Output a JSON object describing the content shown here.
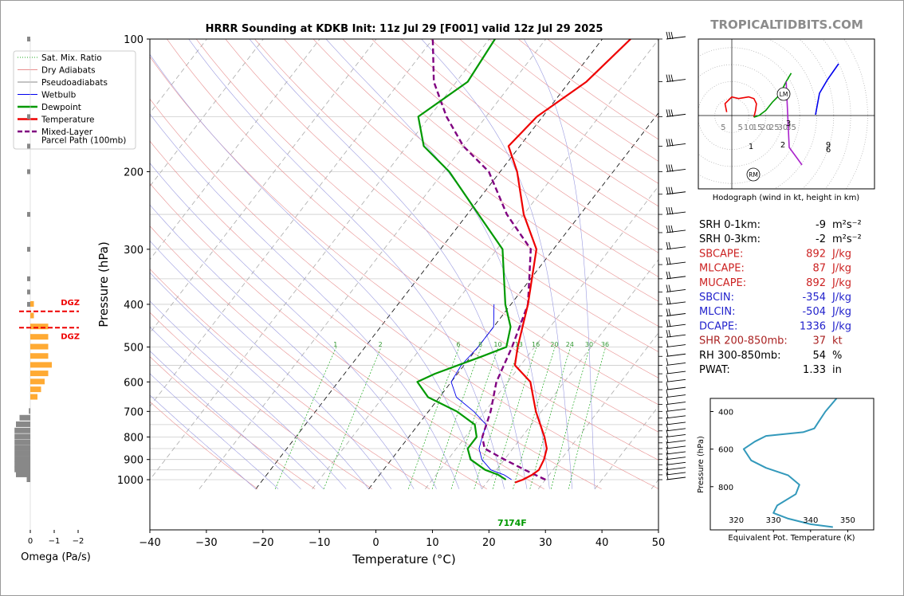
{
  "title": "HRRR Sounding at KDKB Init: 11z Jul 29 [F001] valid 12z Jul 29 2025",
  "watermark": "TROPICALTIDBITS.COM",
  "colors": {
    "temperature": "#ee0000",
    "dewpoint": "#009900",
    "wetbulb": "#0000ee",
    "parcel": "#800080",
    "dry_adiabat": "#e89090",
    "pseudoadiabat": "#9a9ae0",
    "mixing_ratio": "#22aa22",
    "isotherm": "#333333",
    "theta_e": "#3399bb",
    "cape_red": "#cc2222",
    "cin_blue": "#2222cc",
    "shear_red": "#aa2222",
    "omega_up": "#ffaa33",
    "omega_down": "#888888"
  },
  "skewt": {
    "xlabel": "Temperature (°C)",
    "ylabel": "Pressure (hPa)",
    "xlim": [
      -40,
      50
    ],
    "xticks": [
      "−40",
      "−30",
      "−20",
      "−10",
      "0",
      "10",
      "20",
      "30",
      "40",
      "50"
    ],
    "yticks": [
      "100",
      "200",
      "300",
      "400",
      "500",
      "600",
      "700",
      "800",
      "900",
      "1000"
    ],
    "surface_label": "71",
    "surface_label_dew": "74F",
    "mixing_ratio_labels": [
      "1",
      "2",
      "6",
      "8",
      "10",
      "13",
      "16",
      "20",
      "24",
      "30",
      "36"
    ],
    "legend": [
      {
        "key": "mix",
        "label": "Sat. Mix. Ratio"
      },
      {
        "key": "dry",
        "label": "Dry Adiabats"
      },
      {
        "key": "pseudo",
        "label": "Pseudoadiabats"
      },
      {
        "key": "wb",
        "label": "Wetbulb"
      },
      {
        "key": "dew",
        "label": "Dewpoint"
      },
      {
        "key": "temp",
        "label": "Temperature"
      },
      {
        "key": "parcel",
        "label": "Mixed-Layer"
      },
      {
        "key": "parcel2",
        "label": "Parcel Path (100mb)"
      }
    ]
  },
  "chart_data": [
    {
      "type": "line",
      "name": "skew-t",
      "xlabel": "Temperature (°C)",
      "ylabel": "Pressure (hPa)",
      "xlim": [
        -40,
        50
      ],
      "ylim": [
        1050,
        100
      ],
      "y_scale": "log",
      "series": [
        {
          "name": "Temperature",
          "points": [
            [
              25,
              1015
            ],
            [
              26,
              1000
            ],
            [
              27,
              975
            ],
            [
              27.5,
              950
            ],
            [
              27,
              900
            ],
            [
              26,
              850
            ],
            [
              24,
              800
            ],
            [
              19,
              700
            ],
            [
              14,
              600
            ],
            [
              9,
              550
            ],
            [
              7,
              500
            ],
            [
              3,
              400
            ],
            [
              -3,
              300
            ],
            [
              -10,
              250
            ],
            [
              -17,
              200
            ],
            [
              -22,
              175
            ],
            [
              -21,
              150
            ],
            [
              -17,
              125
            ],
            [
              -15,
              100
            ]
          ]
        },
        {
          "name": "Dewpoint",
          "points": [
            [
              23,
              1000
            ],
            [
              21,
              975
            ],
            [
              18,
              950
            ],
            [
              14,
              900
            ],
            [
              12,
              850
            ],
            [
              12,
              800
            ],
            [
              10,
              750
            ],
            [
              5,
              700
            ],
            [
              -2,
              650
            ],
            [
              -6,
              600
            ],
            [
              -4,
              575
            ],
            [
              2,
              525
            ],
            [
              5,
              500
            ],
            [
              3,
              450
            ],
            [
              -1,
              400
            ],
            [
              -9,
              300
            ],
            [
              -18,
              250
            ],
            [
              -29,
              200
            ],
            [
              -37,
              175
            ],
            [
              -42,
              150
            ],
            [
              -38,
              125
            ],
            [
              -39,
              100
            ]
          ]
        },
        {
          "name": "Wetbulb",
          "points": [
            [
              24,
              1000
            ],
            [
              22,
              975
            ],
            [
              19,
              950
            ],
            [
              16,
              900
            ],
            [
              14,
              850
            ],
            [
              13,
              800
            ],
            [
              12,
              750
            ],
            [
              8,
              700
            ],
            [
              3,
              650
            ],
            [
              0,
              600
            ],
            [
              -0.5,
              550
            ],
            [
              0,
              500
            ],
            [
              0,
              450
            ],
            [
              -3,
              400
            ]
          ]
        },
        {
          "name": "Mixed-Layer Parcel Path (100mb)",
          "points": [
            [
              30,
              1000
            ],
            [
              25,
              950
            ],
            [
              20,
              900
            ],
            [
              15,
              850
            ],
            [
              13,
              800
            ],
            [
              11,
              700
            ],
            [
              8,
              600
            ],
            [
              6,
              500
            ],
            [
              3,
              400
            ],
            [
              -4,
              300
            ],
            [
              -13,
              250
            ],
            [
              -22,
              200
            ],
            [
              -30,
              175
            ],
            [
              -37,
              150
            ],
            [
              -44,
              125
            ],
            [
              -50,
              100
            ]
          ]
        }
      ]
    },
    {
      "type": "bar",
      "name": "omega",
      "xlabel": "Omega (Pa/s)",
      "xticks": [
        "0",
        "−1",
        "−2"
      ],
      "annotations": [
        "DGZ",
        "DGZ"
      ],
      "pressure": [
        1000,
        975,
        950,
        925,
        900,
        875,
        850,
        825,
        800,
        775,
        750,
        725,
        700,
        650,
        625,
        600,
        575,
        550,
        525,
        500,
        475,
        450,
        425,
        400
      ],
      "values": [
        0.05,
        0.2,
        0.22,
        0.22,
        0.22,
        0.22,
        0.22,
        0.22,
        0.22,
        0.22,
        0.2,
        0.15,
        0.02,
        -0.1,
        -0.15,
        -0.2,
        -0.25,
        -0.3,
        -0.25,
        -0.25,
        -0.25,
        -0.25,
        -0.05,
        -0.05
      ]
    },
    {
      "type": "line",
      "name": "hodograph",
      "xlabel": "Hodograph (wind in kt, height in km)",
      "ring_labels": [
        "5",
        "5",
        "10",
        "15",
        "20",
        "25",
        "30",
        "35"
      ],
      "height_labels": [
        "1",
        "2",
        "3",
        "6",
        "9"
      ],
      "markers": [
        "LM",
        "RM"
      ],
      "points": [
        [
          -3,
          -2
        ],
        [
          -4,
          -7
        ],
        [
          0,
          -11
        ],
        [
          4,
          -10
        ],
        [
          10,
          -11
        ],
        [
          13,
          -10
        ],
        [
          14.5,
          -7
        ],
        [
          14,
          -3
        ],
        [
          13,
          1
        ],
        [
          16,
          0
        ],
        [
          20,
          -3
        ],
        [
          24,
          -8
        ],
        [
          28,
          -12
        ],
        [
          32,
          -20
        ],
        [
          35,
          -25
        ],
        [
          34,
          -15
        ],
        [
          27,
          0
        ],
        [
          28,
          10
        ],
        [
          32,
          15
        ],
        [
          36,
          25
        ]
      ]
    },
    {
      "type": "line",
      "name": "theta-e",
      "xlabel": "Equivalent Pot. Temperature (K)",
      "ylabel": "Pressure (hPa)",
      "xticks": [
        "320",
        "330",
        "340",
        "350"
      ],
      "yticks": [
        "400",
        "600",
        "800"
      ],
      "points": [
        [
          346,
          1015
        ],
        [
          340,
          1000
        ],
        [
          334,
          970
        ],
        [
          330,
          940
        ],
        [
          331,
          900
        ],
        [
          336,
          840
        ],
        [
          337,
          790
        ],
        [
          334,
          740
        ],
        [
          328,
          700
        ],
        [
          324,
          660
        ],
        [
          322,
          600
        ],
        [
          325,
          560
        ],
        [
          328,
          530
        ],
        [
          338,
          510
        ],
        [
          341,
          490
        ],
        [
          342,
          460
        ],
        [
          344,
          400
        ],
        [
          347,
          330
        ]
      ]
    }
  ],
  "indices": [
    {
      "label": "SRH 0-1km:",
      "value": "-9",
      "unit": "m²s⁻²",
      "color": "#000000"
    },
    {
      "label": "SRH 0-3km:",
      "value": "-2",
      "unit": "m²s⁻²",
      "color": "#000000"
    },
    {
      "label": "SBCAPE:",
      "value": "892",
      "unit": "J/kg",
      "color": "#cc2222"
    },
    {
      "label": "MLCAPE:",
      "value": "87",
      "unit": "J/kg",
      "color": "#cc2222"
    },
    {
      "label": "MUCAPE:",
      "value": "892",
      "unit": "J/kg",
      "color": "#cc2222"
    },
    {
      "label": "SBCIN:",
      "value": "-354",
      "unit": "J/kg",
      "color": "#2222cc"
    },
    {
      "label": "MLCIN:",
      "value": "-504",
      "unit": "J/kg",
      "color": "#2222cc"
    },
    {
      "label": "DCAPE:",
      "value": "1336",
      "unit": "J/kg",
      "color": "#2222cc"
    },
    {
      "label": "SHR 200-850mb:",
      "value": "37",
      "unit": "kt",
      "color": "#aa2222"
    },
    {
      "label": "RH 300-850mb:",
      "value": "54",
      "unit": "%",
      "color": "#000000"
    },
    {
      "label": "PWAT:",
      "value": "1.33",
      "unit": "in",
      "color": "#000000"
    }
  ],
  "hodograph": {
    "caption": "Hodograph (wind in kt, height in km)"
  },
  "theta_panel": {
    "xlabel": "Equivalent Pot. Temperature (K)",
    "ylabel": "Pressure (hPa)"
  },
  "omega_panel": {
    "xlabel": "Omega (Pa/s)"
  }
}
